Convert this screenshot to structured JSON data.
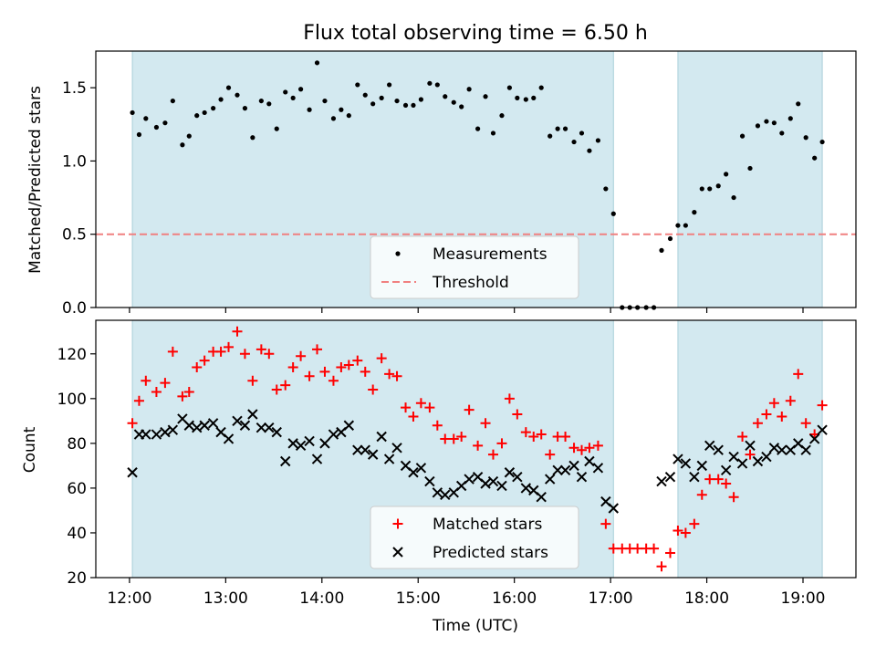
{
  "chart_data": [
    {
      "type": "scatter",
      "title": "Flux total observing time = 6.50 h",
      "xlabel": "",
      "ylabel": "Matched/Predicted stars",
      "xlim": [
        11.65,
        19.55
      ],
      "ylim": [
        0,
        1.75
      ],
      "yticks": [
        0.0,
        0.5,
        1.0,
        1.5
      ],
      "ytick_labels": [
        "0.0",
        "0.5",
        "1.0",
        "1.5"
      ],
      "xticks": [
        12,
        13,
        14,
        15,
        16,
        17,
        18,
        19
      ],
      "shaded_intervals": [
        [
          12.03,
          17.03
        ],
        [
          17.7,
          19.2
        ]
      ],
      "shade_color": "#d3e9f0",
      "threshold": 0.5,
      "legend_position": "lower center",
      "series": [
        {
          "name": "Measurements",
          "marker": "dot",
          "color": "#000000",
          "points": [
            [
              12.03,
              1.33
            ],
            [
              12.1,
              1.18
            ],
            [
              12.17,
              1.29
            ],
            [
              12.28,
              1.23
            ],
            [
              12.37,
              1.26
            ],
            [
              12.45,
              1.41
            ],
            [
              12.55,
              1.11
            ],
            [
              12.62,
              1.17
            ],
            [
              12.7,
              1.31
            ],
            [
              12.78,
              1.33
            ],
            [
              12.87,
              1.36
            ],
            [
              12.95,
              1.42
            ],
            [
              13.03,
              1.5
            ],
            [
              13.12,
              1.45
            ],
            [
              13.2,
              1.36
            ],
            [
              13.28,
              1.16
            ],
            [
              13.37,
              1.41
            ],
            [
              13.45,
              1.39
            ],
            [
              13.53,
              1.22
            ],
            [
              13.62,
              1.47
            ],
            [
              13.7,
              1.43
            ],
            [
              13.78,
              1.49
            ],
            [
              13.87,
              1.35
            ],
            [
              13.95,
              1.67
            ],
            [
              14.03,
              1.41
            ],
            [
              14.12,
              1.29
            ],
            [
              14.2,
              1.35
            ],
            [
              14.28,
              1.31
            ],
            [
              14.37,
              1.52
            ],
            [
              14.45,
              1.45
            ],
            [
              14.53,
              1.39
            ],
            [
              14.62,
              1.43
            ],
            [
              14.7,
              1.52
            ],
            [
              14.78,
              1.41
            ],
            [
              14.87,
              1.38
            ],
            [
              14.95,
              1.38
            ],
            [
              15.03,
              1.42
            ],
            [
              15.12,
              1.53
            ],
            [
              15.2,
              1.52
            ],
            [
              15.28,
              1.44
            ],
            [
              15.37,
              1.4
            ],
            [
              15.45,
              1.37
            ],
            [
              15.53,
              1.49
            ],
            [
              15.62,
              1.22
            ],
            [
              15.7,
              1.44
            ],
            [
              15.78,
              1.19
            ],
            [
              15.87,
              1.31
            ],
            [
              15.95,
              1.5
            ],
            [
              16.03,
              1.43
            ],
            [
              16.12,
              1.42
            ],
            [
              16.2,
              1.43
            ],
            [
              16.28,
              1.5
            ],
            [
              16.37,
              1.17
            ],
            [
              16.45,
              1.22
            ],
            [
              16.53,
              1.22
            ],
            [
              16.62,
              1.13
            ],
            [
              16.7,
              1.19
            ],
            [
              16.78,
              1.07
            ],
            [
              16.87,
              1.14
            ],
            [
              16.95,
              0.81
            ],
            [
              17.03,
              0.64
            ],
            [
              17.12,
              0.0
            ],
            [
              17.2,
              0.0
            ],
            [
              17.28,
              0.0
            ],
            [
              17.37,
              0.0
            ],
            [
              17.45,
              0.0
            ],
            [
              17.53,
              0.39
            ],
            [
              17.62,
              0.47
            ],
            [
              17.7,
              0.56
            ],
            [
              17.78,
              0.56
            ],
            [
              17.87,
              0.65
            ],
            [
              17.95,
              0.81
            ],
            [
              18.03,
              0.81
            ],
            [
              18.12,
              0.83
            ],
            [
              18.2,
              0.91
            ],
            [
              18.28,
              0.75
            ],
            [
              18.37,
              1.17
            ],
            [
              18.45,
              0.95
            ],
            [
              18.53,
              1.24
            ],
            [
              18.62,
              1.27
            ],
            [
              18.7,
              1.26
            ],
            [
              18.78,
              1.19
            ],
            [
              18.87,
              1.29
            ],
            [
              18.95,
              1.39
            ],
            [
              19.03,
              1.16
            ],
            [
              19.12,
              1.02
            ],
            [
              19.2,
              1.13
            ]
          ]
        },
        {
          "name": "Threshold",
          "style": "dashed",
          "color": "#f08080",
          "value": 0.5
        }
      ]
    },
    {
      "type": "scatter",
      "title": "",
      "xlabel": "Time (UTC)",
      "ylabel": "Count",
      "xlim": [
        11.65,
        19.55
      ],
      "ylim": [
        20,
        135
      ],
      "yticks": [
        20,
        40,
        60,
        80,
        100,
        120
      ],
      "ytick_labels": [
        "20",
        "40",
        "60",
        "80",
        "100",
        "120"
      ],
      "xticks": [
        12,
        13,
        14,
        15,
        16,
        17,
        18,
        19
      ],
      "xtick_labels": [
        "12:00",
        "13:00",
        "14:00",
        "15:00",
        "16:00",
        "17:00",
        "18:00",
        "19:00"
      ],
      "shaded_intervals": [
        [
          12.03,
          17.03
        ],
        [
          17.7,
          19.2
        ]
      ],
      "shade_color": "#d3e9f0",
      "legend_position": "lower center",
      "series": [
        {
          "name": "Matched stars",
          "marker": "plus",
          "color": "#ff0000",
          "points": [
            [
              12.03,
              89
            ],
            [
              12.1,
              99
            ],
            [
              12.17,
              108
            ],
            [
              12.28,
              103
            ],
            [
              12.37,
              107
            ],
            [
              12.45,
              121
            ],
            [
              12.55,
              101
            ],
            [
              12.62,
              103
            ],
            [
              12.7,
              114
            ],
            [
              12.78,
              117
            ],
            [
              12.87,
              121
            ],
            [
              12.95,
              121
            ],
            [
              13.03,
              123
            ],
            [
              13.12,
              130
            ],
            [
              13.2,
              120
            ],
            [
              13.28,
              108
            ],
            [
              13.37,
              122
            ],
            [
              13.45,
              120
            ],
            [
              13.53,
              104
            ],
            [
              13.62,
              106
            ],
            [
              13.7,
              114
            ],
            [
              13.78,
              119
            ],
            [
              13.87,
              110
            ],
            [
              13.95,
              122
            ],
            [
              14.03,
              112
            ],
            [
              14.12,
              108
            ],
            [
              14.2,
              114
            ],
            [
              14.28,
              115
            ],
            [
              14.37,
              117
            ],
            [
              14.45,
              112
            ],
            [
              14.53,
              104
            ],
            [
              14.62,
              118
            ],
            [
              14.7,
              111
            ],
            [
              14.78,
              110
            ],
            [
              14.87,
              96
            ],
            [
              14.95,
              92
            ],
            [
              15.03,
              98
            ],
            [
              15.12,
              96
            ],
            [
              15.2,
              88
            ],
            [
              15.28,
              82
            ],
            [
              15.37,
              82
            ],
            [
              15.45,
              83
            ],
            [
              15.53,
              95
            ],
            [
              15.62,
              79
            ],
            [
              15.7,
              89
            ],
            [
              15.78,
              75
            ],
            [
              15.87,
              80
            ],
            [
              15.95,
              100
            ],
            [
              16.03,
              93
            ],
            [
              16.12,
              85
            ],
            [
              16.2,
              83
            ],
            [
              16.28,
              84
            ],
            [
              16.37,
              75
            ],
            [
              16.45,
              83
            ],
            [
              16.53,
              83
            ],
            [
              16.62,
              78
            ],
            [
              16.7,
              77
            ],
            [
              16.78,
              78
            ],
            [
              16.87,
              79
            ],
            [
              16.95,
              44
            ],
            [
              17.03,
              33
            ],
            [
              17.12,
              33
            ],
            [
              17.2,
              33
            ],
            [
              17.28,
              33
            ],
            [
              17.37,
              33
            ],
            [
              17.45,
              33
            ],
            [
              17.53,
              25
            ],
            [
              17.62,
              31
            ],
            [
              17.7,
              41
            ],
            [
              17.78,
              40
            ],
            [
              17.87,
              44
            ],
            [
              17.95,
              57
            ],
            [
              18.03,
              64
            ],
            [
              18.12,
              64
            ],
            [
              18.2,
              62
            ],
            [
              18.28,
              56
            ],
            [
              18.37,
              83
            ],
            [
              18.45,
              75
            ],
            [
              18.53,
              89
            ],
            [
              18.62,
              93
            ],
            [
              18.7,
              98
            ],
            [
              18.78,
              92
            ],
            [
              18.87,
              99
            ],
            [
              18.95,
              111
            ],
            [
              19.03,
              89
            ],
            [
              19.12,
              84
            ],
            [
              19.2,
              97
            ]
          ]
        },
        {
          "name": "Predicted stars",
          "marker": "x",
          "color": "#000000",
          "points": [
            [
              12.03,
              67
            ],
            [
              12.1,
              84
            ],
            [
              12.17,
              84
            ],
            [
              12.28,
              84
            ],
            [
              12.37,
              85
            ],
            [
              12.45,
              86
            ],
            [
              12.55,
              91
            ],
            [
              12.62,
              88
            ],
            [
              12.7,
              87
            ],
            [
              12.78,
              88
            ],
            [
              12.87,
              89
            ],
            [
              12.95,
              85
            ],
            [
              13.03,
              82
            ],
            [
              13.12,
              90
            ],
            [
              13.2,
              88
            ],
            [
              13.28,
              93
            ],
            [
              13.37,
              87
            ],
            [
              13.45,
              87
            ],
            [
              13.53,
              85
            ],
            [
              13.62,
              72
            ],
            [
              13.7,
              80
            ],
            [
              13.78,
              79
            ],
            [
              13.87,
              81
            ],
            [
              13.95,
              73
            ],
            [
              14.03,
              80
            ],
            [
              14.12,
              84
            ],
            [
              14.2,
              85
            ],
            [
              14.28,
              88
            ],
            [
              14.37,
              77
            ],
            [
              14.45,
              77
            ],
            [
              14.53,
              75
            ],
            [
              14.62,
              83
            ],
            [
              14.7,
              73
            ],
            [
              14.78,
              78
            ],
            [
              14.87,
              70
            ],
            [
              14.95,
              67
            ],
            [
              15.03,
              69
            ],
            [
              15.12,
              63
            ],
            [
              15.2,
              58
            ],
            [
              15.28,
              57
            ],
            [
              15.37,
              58
            ],
            [
              15.45,
              61
            ],
            [
              15.53,
              64
            ],
            [
              15.62,
              65
            ],
            [
              15.7,
              62
            ],
            [
              15.78,
              63
            ],
            [
              15.87,
              61
            ],
            [
              15.95,
              67
            ],
            [
              16.03,
              65
            ],
            [
              16.12,
              60
            ],
            [
              16.2,
              59
            ],
            [
              16.28,
              56
            ],
            [
              16.37,
              64
            ],
            [
              16.45,
              68
            ],
            [
              16.53,
              68
            ],
            [
              16.62,
              70
            ],
            [
              16.7,
              65
            ],
            [
              16.78,
              72
            ],
            [
              16.87,
              69
            ],
            [
              16.95,
              54
            ],
            [
              17.03,
              51
            ],
            [
              17.53,
              63
            ],
            [
              17.62,
              65
            ],
            [
              17.7,
              73
            ],
            [
              17.78,
              71
            ],
            [
              17.87,
              65
            ],
            [
              17.95,
              70
            ],
            [
              18.03,
              79
            ],
            [
              18.12,
              77
            ],
            [
              18.2,
              68
            ],
            [
              18.28,
              74
            ],
            [
              18.37,
              71
            ],
            [
              18.45,
              79
            ],
            [
              18.53,
              72
            ],
            [
              18.62,
              74
            ],
            [
              18.7,
              78
            ],
            [
              18.78,
              77
            ],
            [
              18.87,
              77
            ],
            [
              18.95,
              80
            ],
            [
              19.03,
              77
            ],
            [
              19.12,
              82
            ],
            [
              19.2,
              86
            ]
          ]
        }
      ]
    }
  ]
}
